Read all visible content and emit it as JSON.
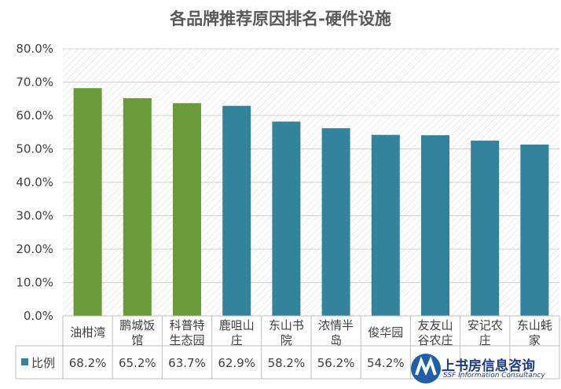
{
  "chart_data": {
    "type": "bar",
    "title": "各品牌推荐原因排名-硬件设施",
    "categories": [
      "油柑湾",
      "鹏城饭馆",
      "科普特生态园",
      "鹿咀山庄",
      "东山书院",
      "浓情半岛",
      "俊华园",
      "友友山谷农庄",
      "安记农庄",
      "东山蚝家"
    ],
    "category_lines": [
      [
        "油柑湾"
      ],
      [
        "鹏城饭",
        "馆"
      ],
      [
        "科普特",
        "生态园"
      ],
      [
        "鹿咀山",
        "庄"
      ],
      [
        "东山书",
        "院"
      ],
      [
        "浓情半",
        "岛"
      ],
      [
        "俊华园"
      ],
      [
        "友友山",
        "谷农庄"
      ],
      [
        "安记农",
        "庄"
      ],
      [
        "东山蚝",
        "家"
      ]
    ],
    "series": [
      {
        "name": "比例",
        "values": [
          68.2,
          65.2,
          63.7,
          62.9,
          58.2,
          56.2,
          54.2,
          54.1,
          52.5,
          51.3
        ],
        "value_labels": [
          "68.2%",
          "65.2%",
          "63.7%",
          "62.9%",
          "58.2%",
          "56.2%",
          "54.2%",
          "",
          "",
          ""
        ]
      }
    ],
    "bar_colors": [
      "#6a9a3a",
      "#6a9a3a",
      "#6a9a3a",
      "#31849b",
      "#31849b",
      "#31849b",
      "#31849b",
      "#31849b",
      "#31849b",
      "#31849b"
    ],
    "legend_color": "#31849b",
    "ylim": [
      0,
      80
    ],
    "yticks": [
      "0.0%",
      "10.0%",
      "20.0%",
      "30.0%",
      "40.0%",
      "50.0%",
      "60.0%",
      "70.0%",
      "80.0%"
    ],
    "ytick_values": [
      0,
      10,
      20,
      30,
      40,
      50,
      60,
      70,
      80
    ],
    "grid": true,
    "data_table": true
  },
  "watermark": {
    "cn": "上书房信息咨询",
    "en": "SSF Information Consultancy"
  }
}
